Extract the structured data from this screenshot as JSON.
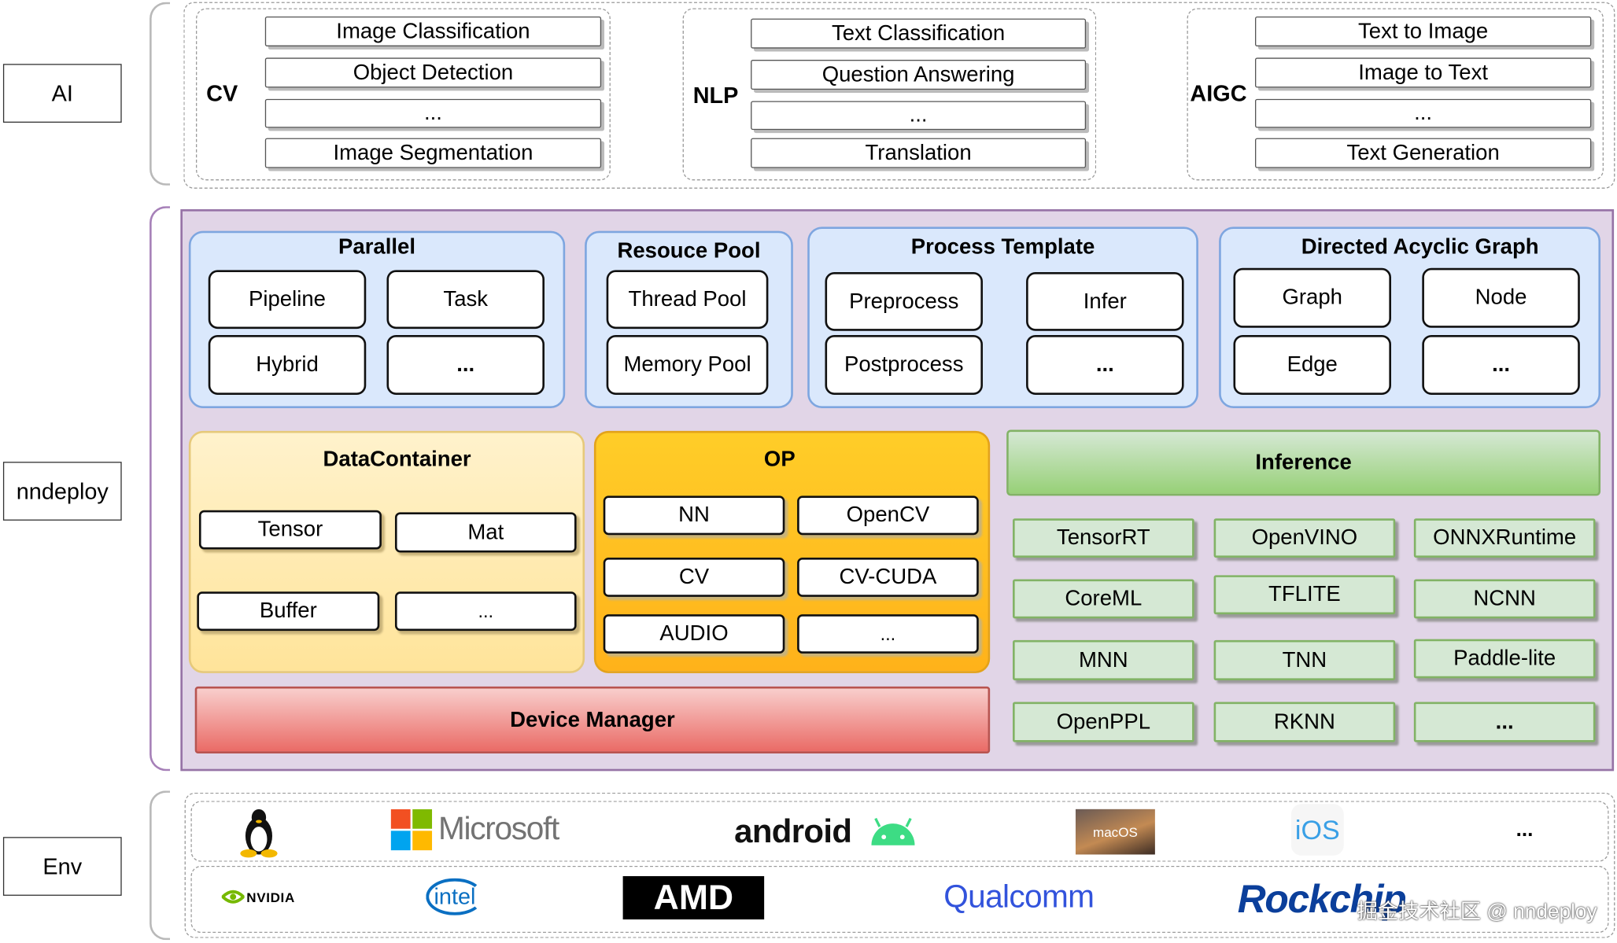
{
  "layers": {
    "ai": "AI",
    "nndeploy": "nndeploy",
    "env": "Env"
  },
  "ai": {
    "groups": [
      {
        "label": "CV",
        "items": [
          "Image Classification",
          "Object Detection",
          "...",
          "Image Segmentation"
        ]
      },
      {
        "label": "NLP",
        "items": [
          "Text Classification",
          "Question Answering",
          "...",
          "Translation"
        ]
      },
      {
        "label": "AIGC",
        "items": [
          "Text to Image",
          "Image to Text",
          "...",
          "Text Generation"
        ]
      }
    ]
  },
  "nndeploy": {
    "parallel": {
      "title": "Parallel",
      "items": [
        "Pipeline",
        "Task",
        "Hybrid",
        "..."
      ]
    },
    "resource_pool": {
      "title": "Resouce Pool",
      "items": [
        "Thread Pool",
        "Memory Pool"
      ]
    },
    "process_template": {
      "title": "Process Template",
      "items": [
        "Preprocess",
        "Infer",
        "Postprocess",
        "..."
      ]
    },
    "dag": {
      "title": "Directed Acyclic Graph",
      "items": [
        "Graph",
        "Node",
        "Edge",
        "..."
      ]
    },
    "data_container": {
      "title": "DataContainer",
      "items": [
        "Tensor",
        "Mat",
        "Buffer",
        "..."
      ]
    },
    "op": {
      "title": "OP",
      "items": [
        "NN",
        "OpenCV",
        "CV",
        "CV-CUDA",
        "AUDIO",
        "..."
      ]
    },
    "inference": {
      "title": "Inference",
      "items": [
        "TensorRT",
        "OpenVINO",
        "ONNXRuntime",
        "CoreML",
        "TFLITE",
        "NCNN",
        "MNN",
        "TNN",
        "Paddle-lite",
        "OpenPPL",
        "RKNN",
        "..."
      ]
    },
    "device_manager": "Device Manager"
  },
  "env": {
    "os": [
      "Linux",
      "Microsoft",
      "android",
      "macOS",
      "iOS",
      "..."
    ],
    "hardware": [
      "NVIDIA",
      "intel",
      "AMD",
      "Qualcomm",
      "Rockchip"
    ],
    "watermark": "掘金技术社区 @ nndeploy"
  },
  "colors": {
    "purple_bg": "#e1d5e7",
    "blue_bg": "#dae8fc",
    "yellow_bg": "#fff2cc",
    "orange_bg": "#ffcd28",
    "green_bg": "#d5e8d4",
    "red_bg": "#f8cecc"
  }
}
